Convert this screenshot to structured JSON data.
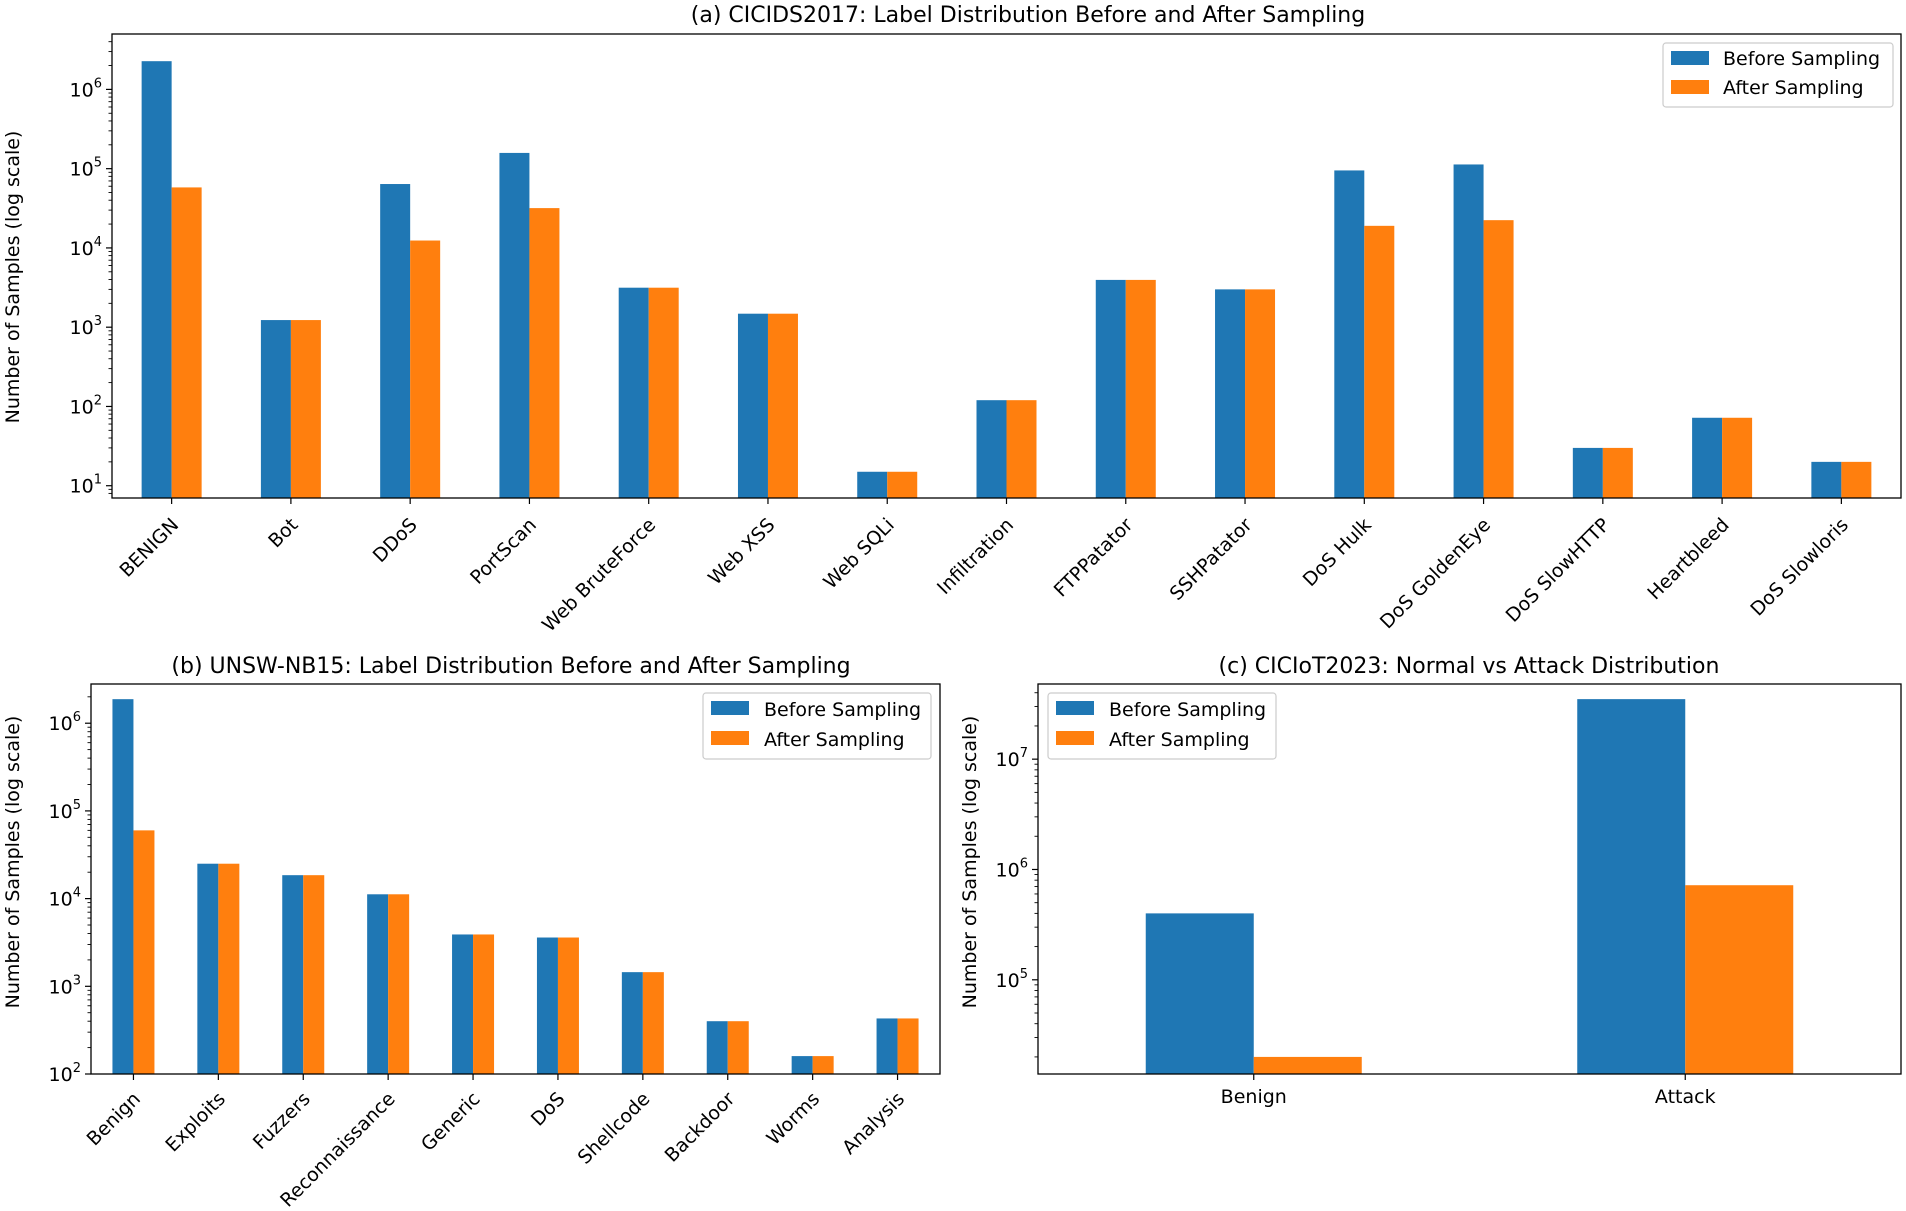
{
  "colors": {
    "before": "#1f77b4",
    "after": "#ff7f0e"
  },
  "chart_data": [
    {
      "type": "bar",
      "scale": "log",
      "title": "(a) CICIDS2017: Label Distribution Before and After Sampling",
      "ylabel": "Number of Samples (log scale)",
      "xlabel": "",
      "ylim": [
        7,
        5000000
      ],
      "yticks": [
        1,
        2,
        3,
        4,
        5,
        6
      ],
      "legend": "top-right",
      "legend_entries": [
        "Before Sampling",
        "After Sampling"
      ],
      "categories": [
        "BENIGN",
        "Bot",
        "DDoS",
        "PortScan",
        "Web BruteForce",
        "Web XSS",
        "Web SQLi",
        "Infiltration",
        "FTPPatator",
        "SSHPatator",
        "DoS Hulk",
        "DoS GoldenEye",
        "DoS SlowHTTP",
        "Heartbleed",
        "DoS Slowloris"
      ],
      "series": [
        {
          "name": "Before Sampling",
          "values": [
            2270000,
            1230,
            64000,
            158000,
            3150,
            1480,
            15,
            120,
            3950,
            3000,
            95000,
            113000,
            30,
            72,
            20
          ]
        },
        {
          "name": "After Sampling",
          "values": [
            58000,
            1230,
            12400,
            31800,
            3150,
            1480,
            15,
            120,
            3950,
            3000,
            19000,
            22400,
            30,
            72,
            20
          ]
        }
      ]
    },
    {
      "type": "bar",
      "scale": "log",
      "title": "(b) UNSW-NB15: Label Distribution Before and After Sampling",
      "ylabel": "Number of Samples (log scale)",
      "xlabel": "",
      "ylim": [
        100,
        2800000
      ],
      "yticks": [
        2,
        3,
        4,
        5,
        6
      ],
      "legend": "top-right",
      "legend_entries": [
        "Before Sampling",
        "After Sampling"
      ],
      "categories": [
        "Benign",
        "Exploits",
        "Fuzzers",
        "Reconnaissance",
        "Generic",
        "DoS",
        "Shellcode",
        "Backdoor",
        "Worms",
        "Analysis"
      ],
      "series": [
        {
          "name": "Before Sampling",
          "values": [
            1880000,
            25000,
            18500,
            11200,
            3900,
            3600,
            1450,
            400,
            160,
            430
          ]
        },
        {
          "name": "After Sampling",
          "values": [
            60000,
            25000,
            18500,
            11200,
            3900,
            3600,
            1450,
            400,
            160,
            430
          ]
        }
      ]
    },
    {
      "type": "bar",
      "scale": "log",
      "title": "(c) CICIoT2023: Normal vs Attack Distribution",
      "ylabel": "Number of Samples (log scale)",
      "xlabel": "",
      "ylim": [
        14000,
        48000000
      ],
      "yticks": [
        5,
        6,
        7
      ],
      "legend": "top-left",
      "legend_entries": [
        "Before Sampling",
        "After Sampling"
      ],
      "categories": [
        "Benign",
        "Attack"
      ],
      "series": [
        {
          "name": "Before Sampling",
          "values": [
            400000,
            35000000
          ]
        },
        {
          "name": "After Sampling",
          "values": [
            20000,
            720000
          ]
        }
      ]
    }
  ]
}
